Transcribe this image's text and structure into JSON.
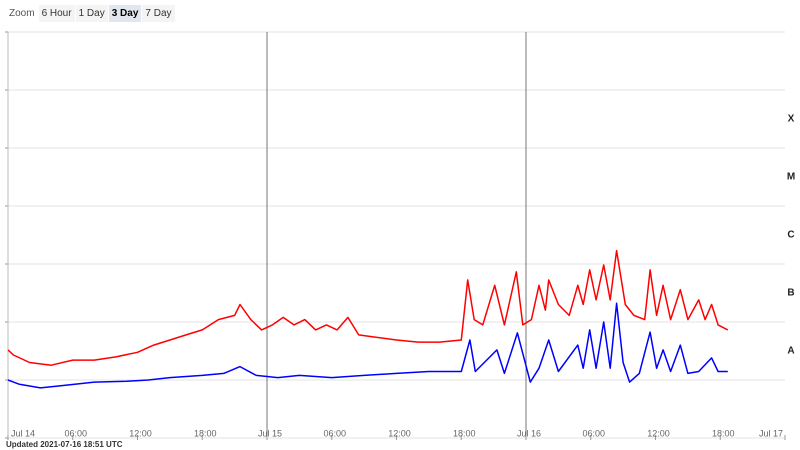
{
  "zoom": {
    "label": "Zoom",
    "buttons": [
      "6 Hour",
      "1 Day",
      "3 Day",
      "7 Day"
    ],
    "selected": 2
  },
  "chart_data": {
    "type": "line",
    "log_scale": true,
    "grid": true,
    "xlim": [
      0,
      72
    ],
    "xticks": [
      {
        "value": 0,
        "label": "Jul 14"
      },
      {
        "value": 6,
        "label": "06:00"
      },
      {
        "value": 12,
        "label": "12:00"
      },
      {
        "value": 18,
        "label": "18:00"
      },
      {
        "value": 24,
        "label": "Jul 15"
      },
      {
        "value": 30,
        "label": "06:00"
      },
      {
        "value": 36,
        "label": "12:00"
      },
      {
        "value": 42,
        "label": "18:00"
      },
      {
        "value": 48,
        "label": "Jul 16"
      },
      {
        "value": 54,
        "label": "06:00"
      },
      {
        "value": 60,
        "label": "12:00"
      },
      {
        "value": 66,
        "label": "18:00"
      },
      {
        "value": 72,
        "label": "Jul 17"
      }
    ],
    "day_lines": [
      24,
      48
    ],
    "ylim": [
      1e-09,
      0.01
    ],
    "yticks": [
      1e-09,
      1e-08,
      1e-07,
      1e-06,
      1e-05,
      0.0001,
      0.001,
      0.01
    ],
    "bands": [
      {
        "label": "A",
        "from": 1e-08,
        "to": 1e-07
      },
      {
        "label": "B",
        "from": 1e-07,
        "to": 1e-06
      },
      {
        "label": "C",
        "from": 1e-06,
        "to": 1e-05
      },
      {
        "label": "M",
        "from": 1e-05,
        "to": 0.0001
      },
      {
        "label": "X",
        "from": 0.0001,
        "to": 0.001
      }
    ],
    "series": [
      {
        "color": "#ff0000",
        "x": [
          0,
          0.5,
          2,
          4,
          6,
          8,
          10,
          12,
          13.5,
          15,
          16.5,
          18,
          19.5,
          21,
          21.5,
          22.5,
          23.5,
          24.5,
          25.5,
          26.5,
          27.5,
          28.5,
          29.5,
          30.5,
          31.5,
          32.5,
          34,
          36,
          38,
          40,
          42,
          42.6,
          43.2,
          44,
          45.1,
          46,
          47.1,
          47.7,
          48.5,
          49.2,
          49.8,
          50.1,
          51,
          52,
          52.8,
          53.3,
          53.9,
          54.5,
          55.2,
          55.8,
          56.4,
          57.2,
          58,
          59,
          59.5,
          60.1,
          60.7,
          61.4,
          62.3,
          63,
          64,
          64.6,
          65.2,
          65.8,
          66.7
        ],
        "values": [
          3.3e-08,
          2.7e-08,
          2e-08,
          1.8e-08,
          2.2e-08,
          2.2e-08,
          2.5e-08,
          3e-08,
          4e-08,
          4.9e-08,
          6e-08,
          7.3e-08,
          1.1e-07,
          1.3e-07,
          2e-07,
          1.1e-07,
          7.3e-08,
          8.9e-08,
          1.2e-07,
          8.9e-08,
          1.1e-07,
          7.3e-08,
          8.9e-08,
          7.3e-08,
          1.2e-07,
          6e-08,
          5.5e-08,
          4.9e-08,
          4.5e-08,
          4.5e-08,
          4.9e-08,
          5.3e-07,
          1.1e-07,
          8.9e-08,
          4.3e-07,
          8.9e-08,
          7.3e-07,
          8.9e-08,
          1.1e-07,
          4.3e-07,
          1.6e-07,
          5.3e-07,
          2e-07,
          1.3e-07,
          4.3e-07,
          2e-07,
          7.9e-07,
          2.4e-07,
          9.6e-07,
          2.4e-07,
          1.7e-06,
          2e-07,
          1.3e-07,
          1.1e-07,
          7.9e-07,
          1.3e-07,
          4.3e-07,
          1.1e-07,
          3.6e-07,
          1.1e-07,
          2.4e-07,
          1.1e-07,
          2e-07,
          8.9e-08,
          7.3e-08
        ]
      },
      {
        "color": "#0000ff",
        "x": [
          0,
          1,
          3,
          5,
          8,
          11,
          13,
          15,
          18,
          20,
          21.5,
          23,
          25,
          27,
          30,
          33,
          36,
          39,
          42,
          42.8,
          43.3,
          45.3,
          46,
          47.2,
          48.4,
          49.2,
          50.1,
          51,
          52.8,
          53.3,
          53.9,
          54.5,
          55.2,
          55.8,
          56.4,
          57,
          57.6,
          58.5,
          59.5,
          60.1,
          60.7,
          61.4,
          62.3,
          63,
          64,
          65.2,
          65.8,
          66.7
        ],
        "values": [
          1e-08,
          8.5e-09,
          7.3e-09,
          8e-09,
          9.2e-09,
          9.5e-09,
          1e-08,
          1.1e-08,
          1.2e-08,
          1.3e-08,
          1.7e-08,
          1.2e-08,
          1.1e-08,
          1.2e-08,
          1.1e-08,
          1.2e-08,
          1.3e-08,
          1.4e-08,
          1.4e-08,
          4.9e-08,
          1.4e-08,
          3.3e-08,
          1.3e-08,
          6.5e-08,
          9.2e-09,
          1.6e-08,
          4.9e-08,
          1.4e-08,
          4e-08,
          1.6e-08,
          7.3e-08,
          1.6e-08,
          1e-07,
          1.6e-08,
          2.1e-07,
          2e-08,
          9.2e-09,
          1.3e-08,
          6.7e-08,
          1.6e-08,
          3.3e-08,
          1.4e-08,
          4e-08,
          1.3e-08,
          1.4e-08,
          2.4e-08,
          1.4e-08,
          1.4e-08
        ]
      }
    ]
  },
  "footer": "Updated 2021-07-16 18:51 UTC"
}
